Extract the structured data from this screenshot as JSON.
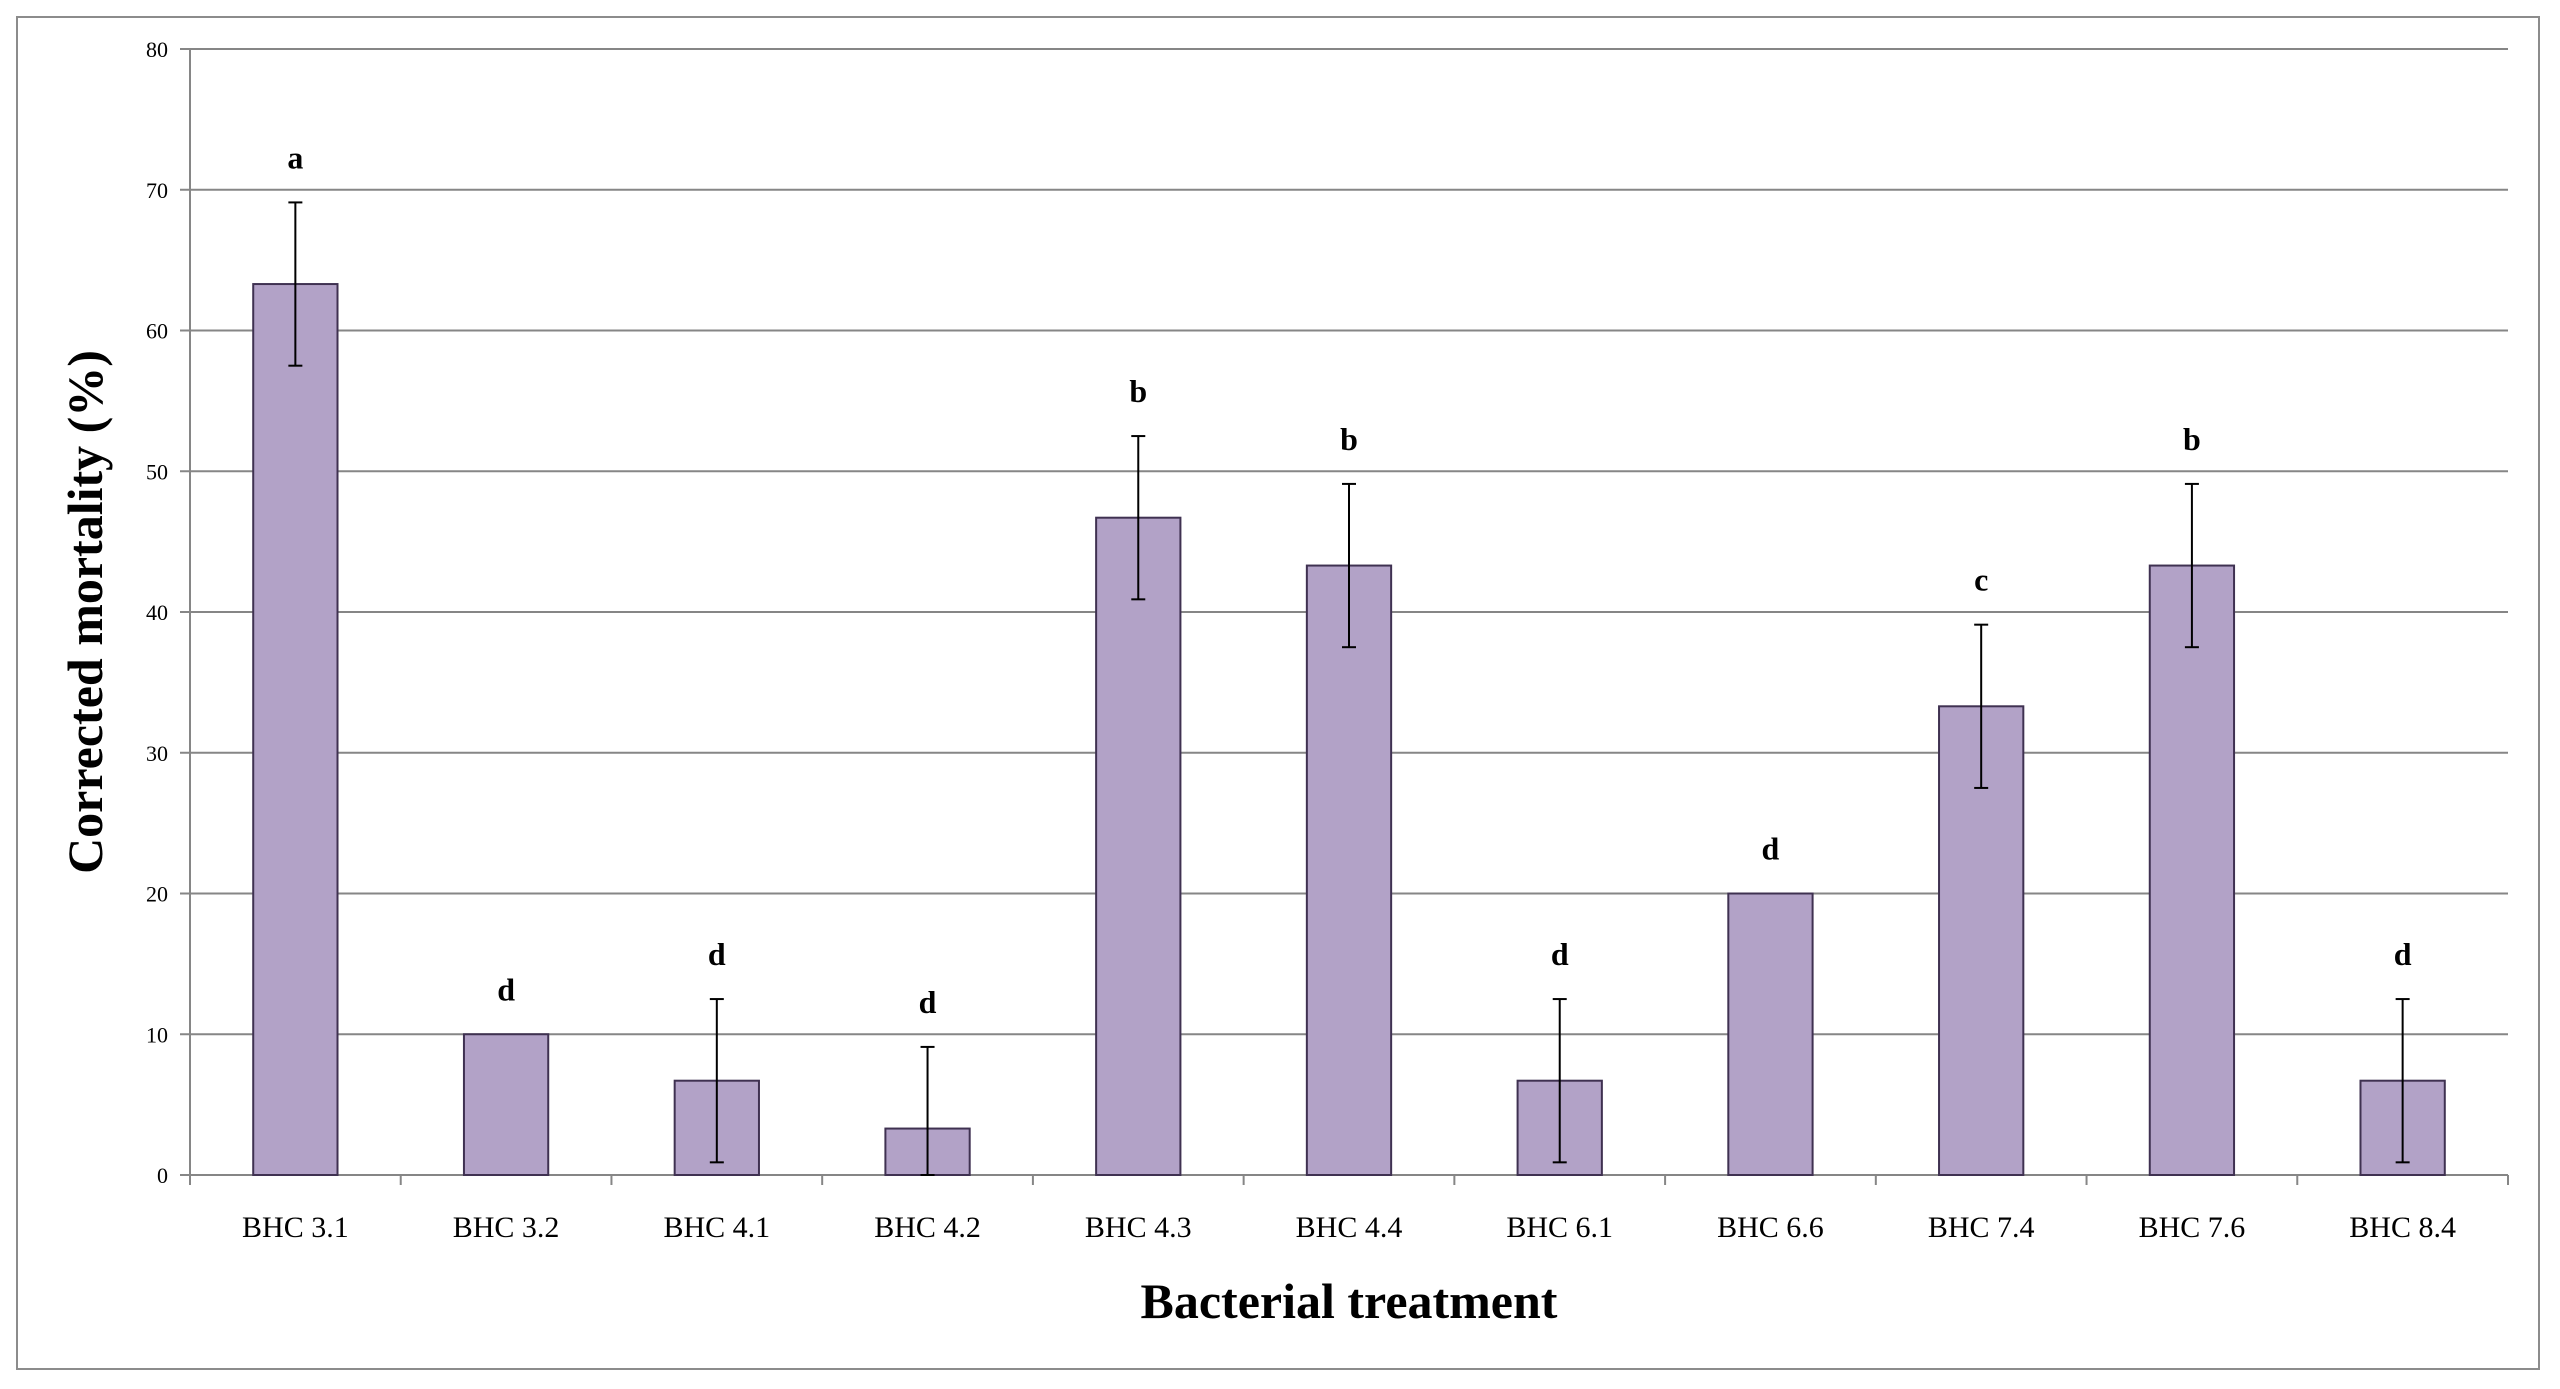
{
  "chart_data": {
    "type": "bar",
    "title": "",
    "xlabel": "Bacterial treatment",
    "ylabel": "Corrected mortality (%)",
    "ylim": [
      0,
      80
    ],
    "yticks": [
      0,
      10,
      20,
      30,
      40,
      50,
      60,
      70,
      80
    ],
    "grid": true,
    "legend": "none",
    "categories": [
      "BHC 3.1",
      "BHC 3.2",
      "BHC 4.1",
      "BHC 4.2",
      "BHC 4.3",
      "BHC 4.4",
      "BHC 6.1",
      "BHC 6.6",
      "BHC 7.4",
      "BHC 7.6",
      "BHC 8.4"
    ],
    "values": [
      63.3,
      10,
      6.7,
      3.3,
      46.7,
      43.3,
      6.7,
      20,
      33.3,
      43.3,
      6.7
    ],
    "errors": [
      5.8,
      0,
      5.8,
      5.8,
      5.8,
      5.8,
      5.8,
      0,
      5.8,
      5.8,
      5.8
    ],
    "significance": [
      "a",
      "d",
      "d",
      "d",
      "b",
      "b",
      "d",
      "d",
      "c",
      "b",
      "d"
    ],
    "bar_color": "#b2a2c7",
    "bar_edge_color": "#3f3151"
  }
}
